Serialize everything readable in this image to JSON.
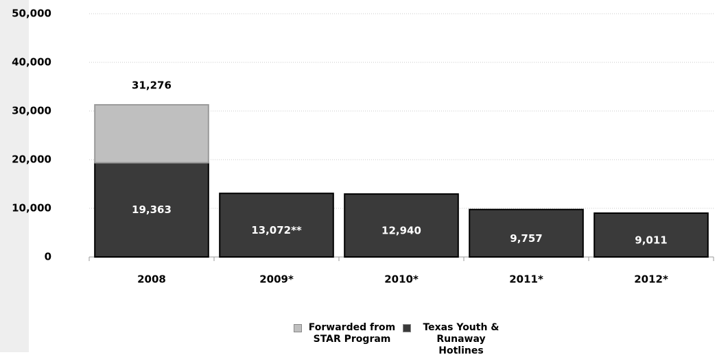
{
  "chart_data": {
    "type": "stacked-bar",
    "categories": [
      "2008",
      "2009*",
      "2010*",
      "2011*",
      "2012*"
    ],
    "series": [
      {
        "name": "Texas Youth & Runaway Hotlines",
        "color": "#3a3a3a",
        "values": [
          19363,
          13072,
          12940,
          9757,
          9011
        ],
        "value_labels": [
          "19,363",
          "13,072**",
          "12,940",
          "9,757",
          "9,011"
        ]
      },
      {
        "name": "Forwarded from STAR Program",
        "color": "#bfbfbf",
        "values": [
          11913,
          null,
          null,
          null,
          null
        ]
      }
    ],
    "annotations": [
      {
        "label": "31,276",
        "category": "2008"
      }
    ],
    "ylim": [
      0,
      50000
    ],
    "yticks": [
      0,
      {
        "value": 10000,
        "label": "10,000"
      },
      {
        "value": 20000,
        "label": "20,000"
      },
      {
        "value": 30000,
        "label": "30,000"
      },
      {
        "value": 40000,
        "label": "40,000"
      },
      {
        "value": 50000,
        "label": "50,000"
      }
    ],
    "grid": true,
    "legend": "bottom"
  }
}
